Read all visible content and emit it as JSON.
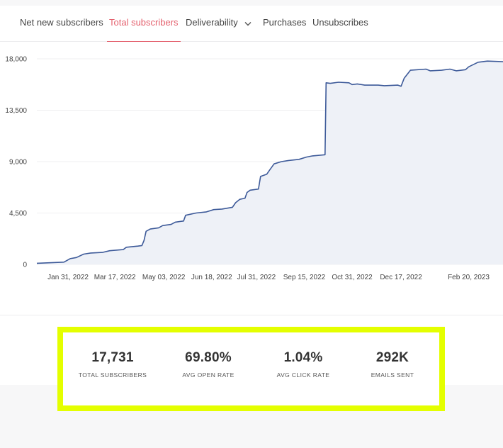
{
  "tabs": [
    {
      "label": "Net new subscribers",
      "active": false
    },
    {
      "label": "Total subscribers",
      "active": true
    },
    {
      "label": "Deliverability",
      "active": false,
      "dropdown": true
    },
    {
      "label": "Purchases",
      "active": false
    },
    {
      "label": "Unsubscribes",
      "active": false
    }
  ],
  "chart_data": {
    "type": "area",
    "title": "",
    "xlabel": "",
    "ylabel": "",
    "ylim": [
      0,
      18000
    ],
    "yticks": [
      "18,000",
      "13,500",
      "9,000",
      "4,500",
      "0"
    ],
    "xticks": [
      "Jan 31, 2022",
      "Mar 17, 2022",
      "May 03, 2022",
      "Jun 18, 2022",
      "Jul 31, 2022",
      "Sep 15, 2022",
      "Oct 31, 2022",
      "Dec 17, 2022",
      "Feb 20, 2023"
    ],
    "grid": true,
    "series": [
      {
        "color": "#3d5a99",
        "fill": "#eef1f7",
        "points": [
          [
            "2022-01-01",
            100
          ],
          [
            "2022-01-27",
            200
          ],
          [
            "2022-02-02",
            500
          ],
          [
            "2022-02-08",
            600
          ],
          [
            "2022-02-15",
            900
          ],
          [
            "2022-02-22",
            1000
          ],
          [
            "2022-03-05",
            1050
          ],
          [
            "2022-03-12",
            1200
          ],
          [
            "2022-03-25",
            1300
          ],
          [
            "2022-03-28",
            1500
          ],
          [
            "2022-04-08",
            1600
          ],
          [
            "2022-04-12",
            1650
          ],
          [
            "2022-04-14",
            2100
          ],
          [
            "2022-04-16",
            2900
          ],
          [
            "2022-04-20",
            3100
          ],
          [
            "2022-04-28",
            3200
          ],
          [
            "2022-05-02",
            3400
          ],
          [
            "2022-05-10",
            3500
          ],
          [
            "2022-05-14",
            3700
          ],
          [
            "2022-05-22",
            3800
          ],
          [
            "2022-05-24",
            4300
          ],
          [
            "2022-06-03",
            4500
          ],
          [
            "2022-06-13",
            4600
          ],
          [
            "2022-06-20",
            4800
          ],
          [
            "2022-06-28",
            4850
          ],
          [
            "2022-07-08",
            5000
          ],
          [
            "2022-07-11",
            5400
          ],
          [
            "2022-07-15",
            5700
          ],
          [
            "2022-07-20",
            5800
          ],
          [
            "2022-07-22",
            6300
          ],
          [
            "2022-07-25",
            6500
          ],
          [
            "2022-08-02",
            6600
          ],
          [
            "2022-08-04",
            7700
          ],
          [
            "2022-08-10",
            7900
          ],
          [
            "2022-08-13",
            8300
          ],
          [
            "2022-08-17",
            8800
          ],
          [
            "2022-08-24",
            9000
          ],
          [
            "2022-08-31",
            9100
          ],
          [
            "2022-09-10",
            9200
          ],
          [
            "2022-09-17",
            9400
          ],
          [
            "2022-09-23",
            9500
          ],
          [
            "2022-10-05",
            9600
          ],
          [
            "2022-10-06",
            15900
          ],
          [
            "2022-10-10",
            15850
          ],
          [
            "2022-10-18",
            15950
          ],
          [
            "2022-10-28",
            15900
          ],
          [
            "2022-10-31",
            15750
          ],
          [
            "2022-11-05",
            15800
          ],
          [
            "2022-11-12",
            15700
          ],
          [
            "2022-11-25",
            15700
          ],
          [
            "2022-12-01",
            15650
          ],
          [
            "2022-12-14",
            15700
          ],
          [
            "2022-12-17",
            15600
          ],
          [
            "2022-12-20",
            16300
          ],
          [
            "2022-12-26",
            17000
          ],
          [
            "2023-01-10",
            17100
          ],
          [
            "2023-01-14",
            16950
          ],
          [
            "2023-01-25",
            17000
          ],
          [
            "2023-02-02",
            17100
          ],
          [
            "2023-02-08",
            16950
          ],
          [
            "2023-02-17",
            17050
          ],
          [
            "2023-02-20",
            17300
          ],
          [
            "2023-03-01",
            17700
          ],
          [
            "2023-03-10",
            17800
          ],
          [
            "2023-03-25",
            17750
          ]
        ]
      }
    ]
  },
  "stats": [
    {
      "value": "17,731",
      "label": "TOTAL SUBSCRIBERS"
    },
    {
      "value": "69.80%",
      "label": "AVG OPEN RATE"
    },
    {
      "value": "1.04%",
      "label": "AVG CLICK RATE"
    },
    {
      "value": "292K",
      "label": "EMAILS SENT"
    }
  ],
  "colors": {
    "accent": "#e4606d",
    "line": "#3d5a99",
    "highlight": "#e4ff00"
  },
  "icons": {
    "deliverability_dropdown": "chevron-down-icon"
  }
}
